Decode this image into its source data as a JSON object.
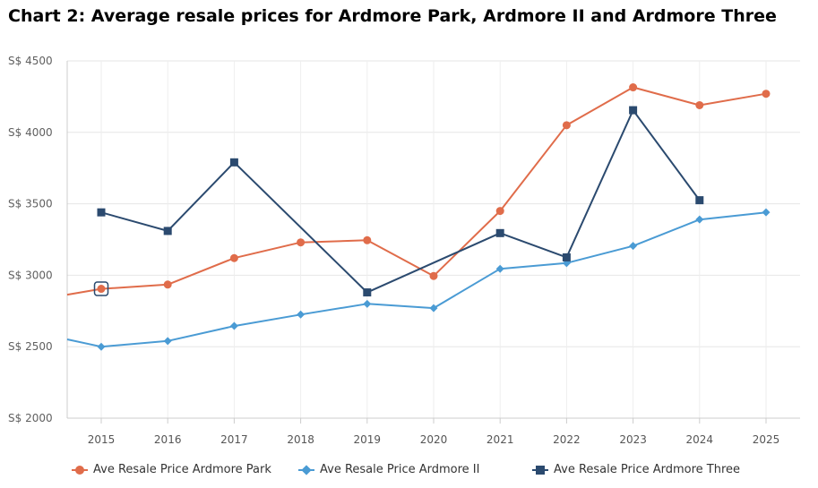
{
  "title": "Chart 2: Average resale prices for Ardmore Park, Ardmore II and Ardmore Three",
  "chart_data": {
    "type": "line",
    "title": "Chart 2: Average resale prices for Ardmore Park, Ardmore II and Ardmore Three",
    "xlabel": "",
    "ylabel": "",
    "categories": [
      "2015",
      "2016",
      "2017",
      "2018",
      "2019",
      "2020",
      "2021",
      "2022",
      "2023",
      "2024",
      "2025"
    ],
    "y_ticks": [
      "S$ 2000",
      "S$ 2500",
      "S$ 3000",
      "S$ 3500",
      "S$ 4000",
      "S$ 4500"
    ],
    "ylim": [
      2000,
      4500
    ],
    "grid": true,
    "legend_position": "bottom",
    "series": [
      {
        "name": "Ave Resale Price Ardmore Park",
        "color": "#e06c4a",
        "marker": "circle",
        "values": [
          2905,
          2935,
          3120,
          3230,
          3245,
          2995,
          3450,
          4050,
          4315,
          4190,
          4270
        ],
        "lead_in_value": 2825,
        "highlighted_index": 0
      },
      {
        "name": "Ave Resale Price Ardmore II",
        "color": "#4a9bd4",
        "marker": "diamond",
        "values": [
          2500,
          2540,
          2645,
          2725,
          2800,
          2770,
          3045,
          3085,
          3205,
          3390,
          3440
        ],
        "lead_in_value": 2600
      },
      {
        "name": "Ave Resale Price Ardmore Three",
        "color": "#2b4a6f",
        "marker": "square",
        "values": [
          3440,
          3310,
          3790,
          null,
          2880,
          null,
          3295,
          3125,
          4155,
          3525,
          null
        ]
      }
    ]
  }
}
